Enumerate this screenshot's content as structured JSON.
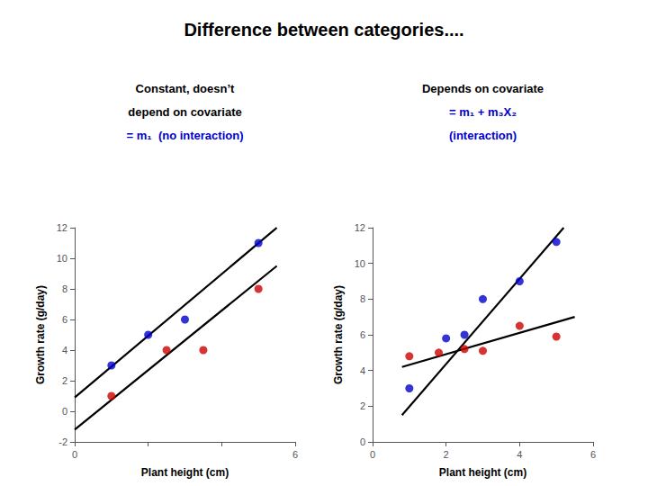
{
  "chart_data": [
    {
      "type": "scatter",
      "title": "Difference between categories....",
      "annotations": [
        {
          "text": "Constant, doesn’t",
          "color": "#000000"
        },
        {
          "text": "depend on covariate",
          "color": "#000000"
        },
        {
          "text": "= m₁  (no interaction)",
          "color": "#0000cc"
        }
      ],
      "xlabel": "Plant height (cm)",
      "ylabel": "Growth rate (g/day)",
      "xlim": [
        0,
        6
      ],
      "ylim": [
        -2,
        12
      ],
      "xticks": [
        0,
        {
          "value": 2,
          "label": null
        },
        {
          "value": 4,
          "label": null
        },
        6
      ],
      "yticks": [
        -2,
        0,
        2,
        4,
        6,
        8,
        10,
        12
      ],
      "grid": false,
      "series": [
        {
          "type": "line",
          "color": "#000000",
          "x": [
            0.0,
            5.5
          ],
          "values": [
            0.9,
            12.0
          ]
        },
        {
          "type": "line",
          "color": "#000000",
          "x": [
            0.0,
            5.5
          ],
          "values": [
            -1.2,
            9.5
          ]
        },
        {
          "type": "scatter",
          "color": "#0000cc",
          "x": [
            1.0,
            2.0,
            3.0,
            5.0
          ],
          "values": [
            3.0,
            5.0,
            6.0,
            11.0
          ]
        },
        {
          "type": "scatter",
          "color": "#cc0000",
          "x": [
            1.0,
            2.5,
            3.5,
            5.0
          ],
          "values": [
            1.0,
            4.0,
            4.0,
            8.0
          ]
        }
      ]
    },
    {
      "type": "scatter",
      "annotations": [
        {
          "text": "Depends on covariate",
          "color": "#000000"
        },
        {
          "text": "= m₁ + m₃X₂",
          "color": "#0000cc"
        },
        {
          "text": "(interaction)",
          "color": "#0000cc"
        }
      ],
      "xlabel": "Plant height (cm)",
      "ylabel": "Growth rate (g/day)",
      "xlim": [
        0,
        6
      ],
      "ylim": [
        0,
        12
      ],
      "xticks": [
        0,
        2,
        4,
        6
      ],
      "yticks": [
        0,
        2,
        4,
        6,
        8,
        10,
        12
      ],
      "grid": false,
      "series": [
        {
          "type": "line",
          "color": "#000000",
          "x": [
            0.8,
            5.2
          ],
          "values": [
            1.5,
            12.0
          ]
        },
        {
          "type": "line",
          "color": "#000000",
          "x": [
            0.8,
            5.5
          ],
          "values": [
            4.2,
            7.0
          ]
        },
        {
          "type": "scatter",
          "color": "#0000cc",
          "x": [
            1.0,
            2.0,
            2.5,
            3.0,
            4.0,
            5.0
          ],
          "values": [
            3.0,
            5.8,
            6.0,
            8.0,
            9.0,
            11.2
          ]
        },
        {
          "type": "scatter",
          "color": "#cc0000",
          "x": [
            1.0,
            1.8,
            2.5,
            3.0,
            4.0,
            5.0
          ],
          "values": [
            4.8,
            5.0,
            5.2,
            5.1,
            6.5,
            5.9
          ]
        }
      ]
    }
  ]
}
